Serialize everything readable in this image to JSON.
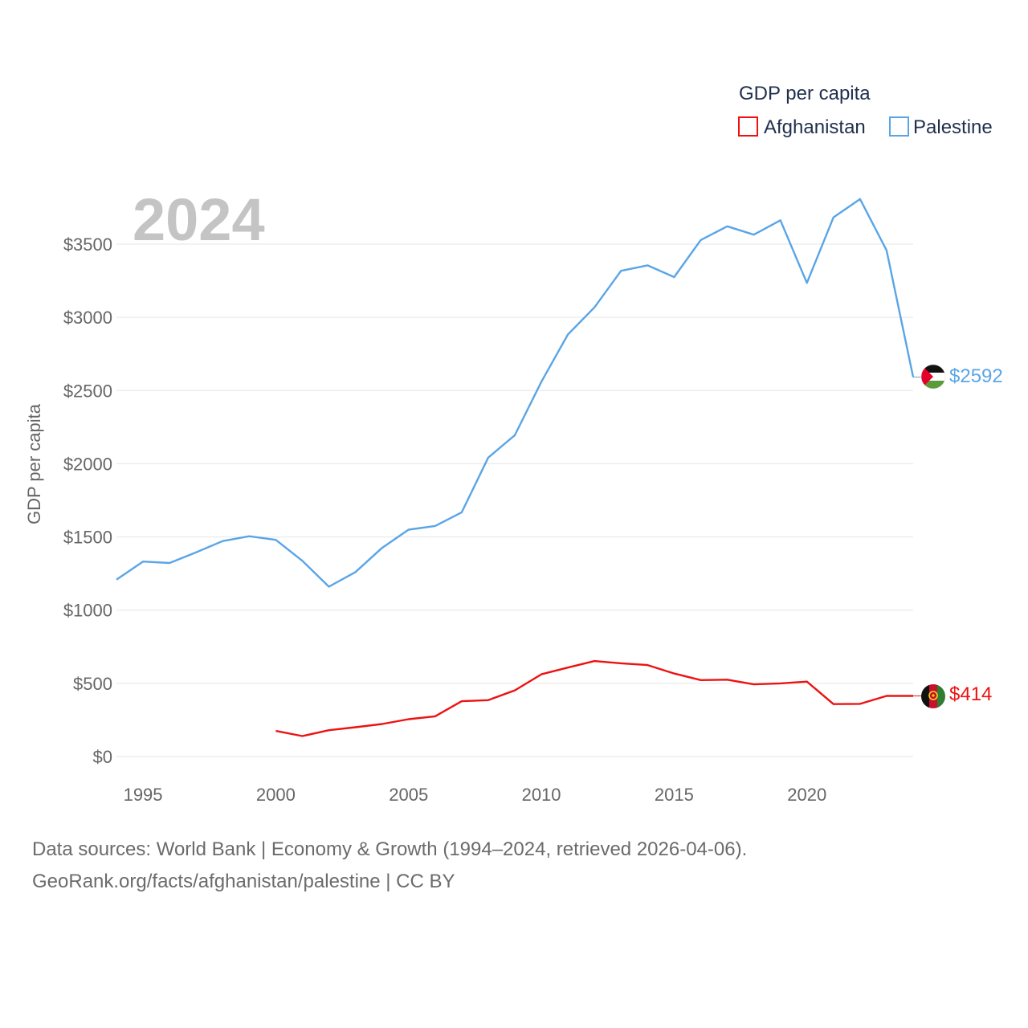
{
  "chart_data": {
    "type": "line",
    "current_year_label": "2024",
    "ylabel": "GDP per capita",
    "legend_title": "GDP per capita",
    "xlim": [
      1994,
      2024
    ],
    "ylim": [
      0,
      3850
    ],
    "x_ticks": [
      1995,
      2000,
      2005,
      2010,
      2015,
      2020
    ],
    "y_ticks": [
      {
        "value": 0,
        "label": "$0"
      },
      {
        "value": 500,
        "label": "$500"
      },
      {
        "value": 1000,
        "label": "$1000"
      },
      {
        "value": 1500,
        "label": "$1500"
      },
      {
        "value": 2000,
        "label": "$2000"
      },
      {
        "value": 2500,
        "label": "$2500"
      },
      {
        "value": 3000,
        "label": "$3000"
      },
      {
        "value": 3500,
        "label": "$3500"
      }
    ],
    "series": [
      {
        "name": "Afghanistan",
        "color": "#ee1111",
        "end_label": "$414",
        "end_value": 414,
        "x": [
          2000,
          2001,
          2002,
          2003,
          2004,
          2005,
          2006,
          2007,
          2008,
          2009,
          2010,
          2011,
          2012,
          2013,
          2014,
          2015,
          2016,
          2017,
          2018,
          2019,
          2020,
          2021,
          2022,
          2023,
          2024
        ],
        "values": [
          175,
          140,
          180,
          200,
          222,
          255,
          275,
          378,
          385,
          452,
          562,
          608,
          652,
          637,
          625,
          567,
          522,
          525,
          493,
          500,
          512,
          358,
          360,
          414,
          414
        ]
      },
      {
        "name": "Palestine",
        "color": "#5aa5e6",
        "end_label": "$2592",
        "end_value": 2592,
        "x": [
          1994,
          1995,
          1996,
          1997,
          1998,
          1999,
          2000,
          2001,
          2002,
          2003,
          2004,
          2005,
          2006,
          2007,
          2008,
          2009,
          2010,
          2011,
          2012,
          2013,
          2014,
          2015,
          2016,
          2017,
          2018,
          2019,
          2020,
          2021,
          2022,
          2023,
          2024
        ],
        "values": [
          1208,
          1332,
          1322,
          1395,
          1472,
          1505,
          1480,
          1337,
          1160,
          1260,
          1425,
          1550,
          1575,
          1668,
          2042,
          2195,
          2560,
          2883,
          3068,
          3318,
          3355,
          3275,
          3528,
          3622,
          3565,
          3663,
          3235,
          3683,
          3808,
          3458,
          2592
        ]
      }
    ]
  },
  "footer": {
    "line1": "Data sources: World Bank | Economy & Growth (1994–2024, retrieved 2026-04-06).",
    "line2": "GeoRank.org/facts/afghanistan/palestine | CC BY"
  }
}
